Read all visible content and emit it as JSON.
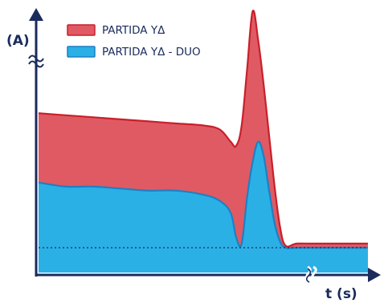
{
  "chart_data": {
    "type": "area",
    "ylabel": "(A)",
    "xlabel": "t (s)",
    "legend_position": "top-left",
    "grid": false,
    "baseline_style": "dotted",
    "series": [
      {
        "name": "PARTIDA YΔ",
        "color_fill": "#e05a63",
        "color_line": "#c8202a",
        "values": [
          [
            0,
            0.66
          ],
          [
            5,
            0.65
          ],
          [
            10,
            0.64
          ],
          [
            15,
            0.63
          ],
          [
            20,
            0.62
          ],
          [
            25,
            0.61
          ],
          [
            30,
            0.6
          ],
          [
            33,
            0.58
          ],
          [
            35,
            0.52
          ],
          [
            36,
            0.5
          ],
          [
            37,
            0.6
          ],
          [
            38,
            0.88
          ],
          [
            39,
            1.16
          ],
          [
            40,
            1.02
          ],
          [
            41,
            0.8
          ],
          [
            42,
            0.55
          ],
          [
            43,
            0.3
          ],
          [
            44,
            0.1
          ],
          [
            45,
            0.01
          ],
          [
            47,
            0.02
          ],
          [
            50,
            0.02
          ],
          [
            55,
            0.02
          ],
          [
            60,
            0.02
          ]
        ]
      },
      {
        "name": "PARTIDA YΔ - DUO",
        "color_fill": "#2bb0e6",
        "color_line": "#1c80c4",
        "values": [
          [
            0,
            0.32
          ],
          [
            5,
            0.3
          ],
          [
            10,
            0.3
          ],
          [
            15,
            0.29
          ],
          [
            20,
            0.28
          ],
          [
            25,
            0.28
          ],
          [
            30,
            0.26
          ],
          [
            33,
            0.23
          ],
          [
            35,
            0.17
          ],
          [
            36,
            0.05
          ],
          [
            37,
            0.02
          ],
          [
            38,
            0.25
          ],
          [
            39,
            0.42
          ],
          [
            40,
            0.52
          ],
          [
            41,
            0.45
          ],
          [
            42,
            0.28
          ],
          [
            43,
            0.12
          ],
          [
            44,
            0.03
          ],
          [
            45,
            0.0
          ],
          [
            47,
            0.0
          ],
          [
            50,
            0.0
          ],
          [
            55,
            0.0
          ],
          [
            60,
            0.0
          ]
        ]
      }
    ],
    "xlim": [
      0,
      60
    ],
    "ylim": [
      0,
      1.2
    ]
  },
  "colors": {
    "axis": "#1a2b5c",
    "baseline": "#1a2b5c"
  }
}
